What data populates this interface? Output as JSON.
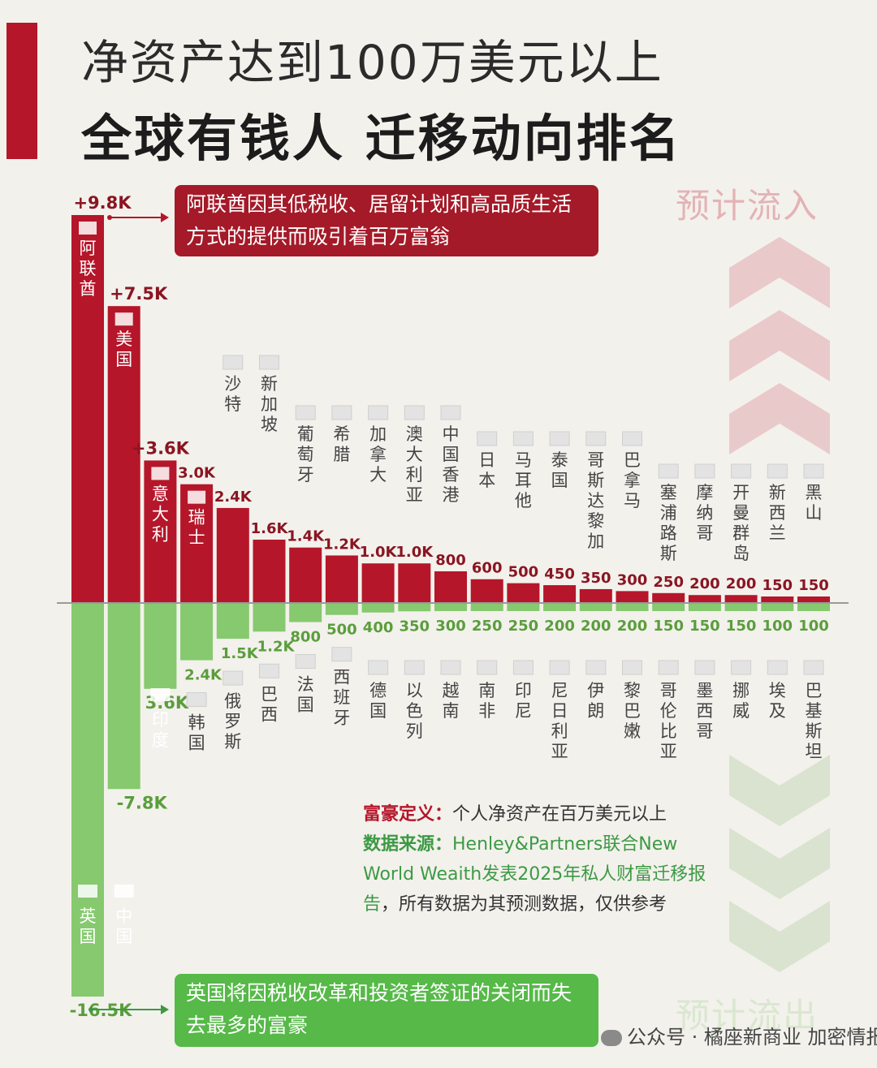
{
  "header": {
    "title_line1": "净资产达到100万美元以上",
    "title_line2": "全球有钱人 迁移动向排名"
  },
  "labels": {
    "inflow": "预计流入",
    "outflow": "预计流出"
  },
  "callouts": {
    "top": "阿联酋因其低税收、居留计划和高品质生活方式的提供而吸引着百万富翁",
    "bottom": "英国将因税收改革和投资者签证的关闭而失去最多的富豪"
  },
  "notes": {
    "definition_key": "富豪定义：",
    "definition_value": "个人净资产在百万美元以上",
    "source_key": "数据来源：",
    "source_value": "Henley&Partners联合New World Weaith发表2025年私人财富迁移报告",
    "source_tail": "，所有数据为其预测数据，仅供参考"
  },
  "watermark": "公众号 · 橘座新商业 加密情报橘",
  "colors": {
    "inflow": "#b5162a",
    "outflow": "#86c96f",
    "inflow_text": "#8a1522",
    "outflow_text": "#5a9e3c"
  },
  "chart_data": {
    "type": "bar",
    "unit": "人",
    "inflow": [
      {
        "country": "阿联酋",
        "label": "+9.8K",
        "value": 9800
      },
      {
        "country": "美国",
        "label": "+7.5K",
        "value": 7500
      },
      {
        "country": "意大利",
        "label": "+3.6K",
        "value": 3600
      },
      {
        "country": "瑞士",
        "label": "3.0K",
        "value": 3000
      },
      {
        "country": "沙特",
        "label": "2.4K",
        "value": 2400
      },
      {
        "country": "新加坡",
        "label": "1.6K",
        "value": 1600
      },
      {
        "country": "葡萄牙",
        "label": "1.4K",
        "value": 1400
      },
      {
        "country": "希腊",
        "label": "1.2K",
        "value": 1200
      },
      {
        "country": "加拿大",
        "label": "1.0K",
        "value": 1000
      },
      {
        "country": "澳大利亚",
        "label": "1.0K",
        "value": 1000
      },
      {
        "country": "中国香港",
        "label": "800",
        "value": 800
      },
      {
        "country": "日本",
        "label": "600",
        "value": 600
      },
      {
        "country": "马耳他",
        "label": "500",
        "value": 500
      },
      {
        "country": "泰国",
        "label": "450",
        "value": 450
      },
      {
        "country": "哥斯达黎加",
        "label": "350",
        "value": 350
      },
      {
        "country": "巴拿马",
        "label": "300",
        "value": 300
      },
      {
        "country": "塞浦路斯",
        "label": "250",
        "value": 250
      },
      {
        "country": "摩纳哥",
        "label": "200",
        "value": 200
      },
      {
        "country": "开曼群岛",
        "label": "200",
        "value": 200
      },
      {
        "country": "新西兰",
        "label": "150",
        "value": 150
      },
      {
        "country": "黑山",
        "label": "150",
        "value": 150
      }
    ],
    "outflow": [
      {
        "country": "英国",
        "label": "-16.5K",
        "value": -16500
      },
      {
        "country": "中国",
        "label": "-7.8K",
        "value": -7800
      },
      {
        "country": "印度",
        "label": "3.6K",
        "value": -3600
      },
      {
        "country": "韩国",
        "label": "2.4K",
        "value": -2400
      },
      {
        "country": "俄罗斯",
        "label": "1.5K",
        "value": -1500
      },
      {
        "country": "巴西",
        "label": "1.2K",
        "value": -1200
      },
      {
        "country": "法国",
        "label": "800",
        "value": -800
      },
      {
        "country": "西班牙",
        "label": "500",
        "value": -500
      },
      {
        "country": "德国",
        "label": "400",
        "value": -400
      },
      {
        "country": "以色列",
        "label": "350",
        "value": -350
      },
      {
        "country": "越南",
        "label": "300",
        "value": -300
      },
      {
        "country": "南非",
        "label": "250",
        "value": -250
      },
      {
        "country": "印尼",
        "label": "250",
        "value": -250
      },
      {
        "country": "尼日利亚",
        "label": "200",
        "value": -200
      },
      {
        "country": "伊朗",
        "label": "200",
        "value": -200
      },
      {
        "country": "黎巴嫩",
        "label": "200",
        "value": -200
      },
      {
        "country": "哥伦比亚",
        "label": "150",
        "value": -150
      },
      {
        "country": "墨西哥",
        "label": "150",
        "value": -150
      },
      {
        "country": "挪威",
        "label": "150",
        "value": -150
      },
      {
        "country": "埃及",
        "label": "100",
        "value": -100
      },
      {
        "country": "巴基斯坦",
        "label": "100",
        "value": -100
      }
    ]
  }
}
